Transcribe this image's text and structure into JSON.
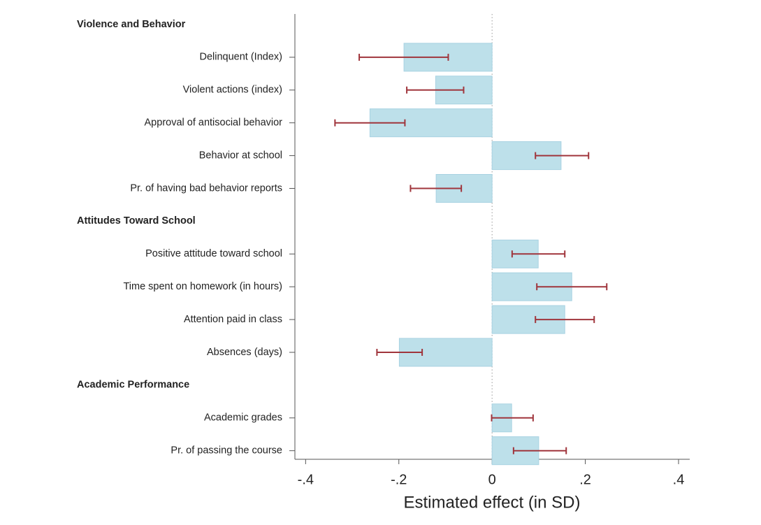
{
  "chart_data": {
    "type": "bar",
    "orientation": "horizontal",
    "x_label": "Estimated effect (in SD)",
    "xlim": [
      -0.423,
      0.424
    ],
    "xticks": [
      {
        "value": -0.4,
        "label": "-.4"
      },
      {
        "value": -0.2,
        "label": "-.2"
      },
      0,
      {
        "value": 0.2,
        "label": ".2"
      },
      {
        "value": 0.4,
        "label": ".4"
      }
    ],
    "bar_color": "#bde0ea",
    "error_color": "#a0353c",
    "groups": [
      {
        "title": "Violence and Behavior",
        "categories": [
          "Delinquent (Index)",
          "Violent actions (index)",
          "Approval of antisocial behavior",
          "Behavior at school",
          "Pr. of having bad behavior reports"
        ],
        "values": [
          -0.189,
          -0.121,
          -0.262,
          0.148,
          -0.12
        ],
        "ci_low": [
          -0.285,
          -0.183,
          -0.337,
          0.093,
          -0.175
        ],
        "ci_high": [
          -0.094,
          -0.061,
          -0.187,
          0.207,
          -0.066
        ]
      },
      {
        "title": "Attitudes Toward School",
        "categories": [
          "Positive attitude toward school",
          "Time spent on homework (in hours)",
          "Attention paid in class",
          "Absences (days)"
        ],
        "values": [
          0.099,
          0.171,
          0.156,
          -0.199
        ],
        "ci_low": [
          0.043,
          0.096,
          0.093,
          -0.247
        ],
        "ci_high": [
          0.156,
          0.246,
          0.219,
          -0.15
        ]
      },
      {
        "title": "Academic Performance",
        "categories": [
          "Academic grades",
          "Pr. of passing the course"
        ],
        "values": [
          0.042,
          0.1
        ],
        "ci_low": [
          -0.001,
          0.046
        ],
        "ci_high": [
          0.088,
          0.159
        ]
      }
    ]
  }
}
